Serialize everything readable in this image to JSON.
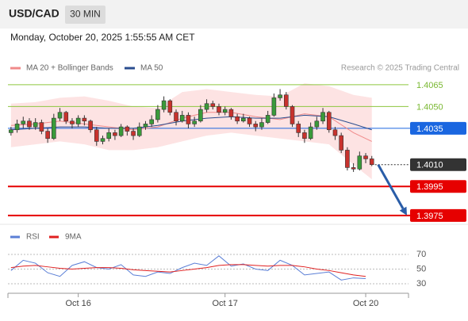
{
  "header": {
    "symbol": "USD/CAD",
    "interval": "30 MIN",
    "timestamp": "Monday, October 20, 2025 1:55:55 AM CET"
  },
  "chart_data": [
    {
      "type": "candlestick",
      "credit": "Research © 2025 Trading Central",
      "xlim": [
        -0.5,
        65
      ],
      "ylim": [
        1.39695,
        1.40715
      ],
      "up_color": "#3a9a3a",
      "down_color": "#c8322d",
      "candles": {
        "open": [
          1.4032,
          1.4034,
          1.4038,
          1.404,
          1.4036,
          1.4039,
          1.4033,
          1.4028,
          1.4042,
          1.4046,
          1.404,
          1.4038,
          1.4042,
          1.404,
          1.4034,
          1.4026,
          1.4028,
          1.4032,
          1.403,
          1.4036,
          1.4033,
          1.403,
          1.4036,
          1.4038,
          1.4041,
          1.4048,
          1.4054,
          1.4046,
          1.404,
          1.4044,
          1.4038,
          1.404,
          1.4048,
          1.4052,
          1.405,
          1.4046,
          1.4048,
          1.4043,
          1.404,
          1.4042,
          1.4038,
          1.4036,
          1.4039,
          1.4044,
          1.4056,
          1.4058,
          1.405,
          1.4038,
          1.4032,
          1.4028,
          1.4036,
          1.404,
          1.4046,
          1.4034,
          1.403,
          1.402,
          1.4008,
          1.4007,
          1.4016,
          1.4014
        ],
        "high": [
          1.4036,
          1.4041,
          1.4043,
          1.4042,
          1.4042,
          1.4041,
          1.4035,
          1.4045,
          1.4049,
          1.4047,
          1.4042,
          1.4044,
          1.4044,
          1.4041,
          1.4036,
          1.403,
          1.4035,
          1.4034,
          1.4038,
          1.4037,
          1.4035,
          1.4039,
          1.404,
          1.4044,
          1.4051,
          1.4057,
          1.4055,
          1.4048,
          1.4047,
          1.4046,
          1.4043,
          1.4051,
          1.4055,
          1.4054,
          1.4052,
          1.405,
          1.4049,
          1.4045,
          1.4045,
          1.4043,
          1.404,
          1.4042,
          1.4047,
          1.4059,
          1.4062,
          1.406,
          1.4051,
          1.404,
          1.4034,
          1.4039,
          1.4043,
          1.4049,
          1.4047,
          1.4036,
          1.4032,
          1.4022,
          1.4011,
          1.4019,
          1.4018,
          1.4016
        ],
        "low": [
          1.403,
          1.4032,
          1.4035,
          1.4034,
          1.4034,
          1.4031,
          1.4025,
          1.4027,
          1.404,
          1.4038,
          1.4035,
          1.4036,
          1.4037,
          1.4032,
          1.4023,
          1.4024,
          1.4026,
          1.4027,
          1.4029,
          1.403,
          1.4027,
          1.4029,
          1.4034,
          1.4036,
          1.4039,
          1.4046,
          1.4044,
          1.4037,
          1.4039,
          1.4035,
          1.4036,
          1.4039,
          1.4046,
          1.4048,
          1.4044,
          1.4044,
          1.4041,
          1.4038,
          1.4039,
          1.4036,
          1.4033,
          1.4034,
          1.4038,
          1.4043,
          1.4054,
          1.4048,
          1.4036,
          1.4029,
          1.4025,
          1.4027,
          1.4034,
          1.4038,
          1.4032,
          1.4027,
          1.4018,
          1.4006,
          1.4005,
          1.4006,
          1.4011,
          1.4009
        ],
        "close": [
          1.4034,
          1.4038,
          1.404,
          1.4036,
          1.4039,
          1.4033,
          1.4028,
          1.4042,
          1.4046,
          1.404,
          1.4038,
          1.4042,
          1.404,
          1.4034,
          1.4026,
          1.4028,
          1.4032,
          1.403,
          1.4036,
          1.4033,
          1.403,
          1.4036,
          1.4038,
          1.4041,
          1.4048,
          1.4054,
          1.4046,
          1.404,
          1.4044,
          1.4038,
          1.404,
          1.4048,
          1.4052,
          1.405,
          1.4046,
          1.4048,
          1.4043,
          1.404,
          1.4042,
          1.4038,
          1.4036,
          1.4039,
          1.4044,
          1.4056,
          1.4058,
          1.405,
          1.4038,
          1.4032,
          1.4028,
          1.4036,
          1.404,
          1.4046,
          1.4034,
          1.403,
          1.402,
          1.4008,
          1.4007,
          1.4016,
          1.4014,
          1.401
        ]
      },
      "series": [
        {
          "name": "MA 20 + Bollinger Bands",
          "color": "#f08a8a",
          "band_color": "#fde3e3",
          "x": [
            0,
            4,
            8,
            12,
            16,
            20,
            24,
            28,
            32,
            36,
            40,
            44,
            48,
            52,
            56,
            59
          ],
          "values": [
            1.4037,
            1.4038,
            1.404,
            1.4038,
            1.4036,
            1.4034,
            1.4036,
            1.4042,
            1.4046,
            1.4046,
            1.4043,
            1.4041,
            1.4045,
            1.4043,
            1.4032,
            1.4026
          ],
          "upper": [
            1.4052,
            1.4053,
            1.4056,
            1.4057,
            1.4054,
            1.405,
            1.4049,
            1.406,
            1.4062,
            1.406,
            1.4058,
            1.4057,
            1.4066,
            1.4064,
            1.4058,
            1.4056
          ],
          "lower": [
            1.4022,
            1.4024,
            1.4026,
            1.4024,
            1.402,
            1.402,
            1.4022,
            1.4026,
            1.403,
            1.4032,
            1.403,
            1.4028,
            1.4026,
            1.4024,
            1.401,
            1.4
          ]
        },
        {
          "name": "MA 50",
          "color": "#2a4d8f",
          "x": [
            0,
            4,
            8,
            12,
            16,
            20,
            24,
            28,
            32,
            36,
            40,
            44,
            48,
            52,
            56,
            59
          ],
          "values": [
            1.4034,
            1.4035,
            1.4036,
            1.4036,
            1.4035,
            1.4035,
            1.4037,
            1.404,
            1.4042,
            1.4043,
            1.4042,
            1.4042,
            1.4044,
            1.4043,
            1.4038,
            1.4034
          ]
        }
      ],
      "levels": [
        {
          "value": 1.4065,
          "label": "1.4065",
          "color": "#8dc63f",
          "box": false,
          "dashed": false
        },
        {
          "value": 1.405,
          "label": "1.4050",
          "color": "#8dc63f",
          "box": false,
          "dashed": false
        },
        {
          "value": 1.4035,
          "label": "1.4035",
          "color": "#1a66e0",
          "box": true,
          "dashed": false
        },
        {
          "value": 1.401,
          "label": "1.4010",
          "color": "#333333",
          "box": true,
          "dashed": true
        },
        {
          "value": 1.3995,
          "label": "1.3995",
          "color": "#e60000",
          "box": true,
          "dashed": false
        },
        {
          "value": 1.3975,
          "label": "1.3975",
          "color": "#e60000",
          "box": true,
          "dashed": false
        }
      ],
      "forecast": {
        "from": 1.401,
        "to": 1.3975,
        "color": "#2a5da8"
      }
    },
    {
      "type": "line",
      "xlim": [
        -0.5,
        65
      ],
      "ylim": [
        17,
        84
      ],
      "yticks": [
        30,
        50,
        70
      ],
      "grid": true,
      "x": [
        0,
        2,
        4,
        6,
        8,
        10,
        12,
        14,
        16,
        18,
        20,
        22,
        24,
        26,
        28,
        30,
        32,
        34,
        36,
        38,
        40,
        42,
        44,
        46,
        48,
        50,
        52,
        54,
        56,
        58
      ],
      "series": [
        {
          "name": "RSI",
          "color": "#5b7fd6",
          "values": [
            48,
            62,
            58,
            45,
            40,
            55,
            60,
            52,
            50,
            56,
            42,
            40,
            46,
            44,
            52,
            58,
            55,
            68,
            54,
            57,
            50,
            48,
            62,
            55,
            42,
            44,
            46,
            35,
            38,
            37
          ]
        },
        {
          "name": "9MA",
          "color": "#e02020",
          "values": [
            52,
            54,
            55,
            53,
            51,
            50,
            51,
            52,
            52,
            51,
            49,
            48,
            47,
            46,
            48,
            50,
            52,
            55,
            56,
            56,
            55,
            54,
            55,
            55,
            53,
            50,
            48,
            45,
            42,
            40
          ]
        }
      ],
      "xticks": [
        {
          "value": 11,
          "label": "Oct 16"
        },
        {
          "value": 35,
          "label": "Oct 17"
        },
        {
          "value": 58,
          "label": "Oct 20"
        }
      ]
    }
  ]
}
